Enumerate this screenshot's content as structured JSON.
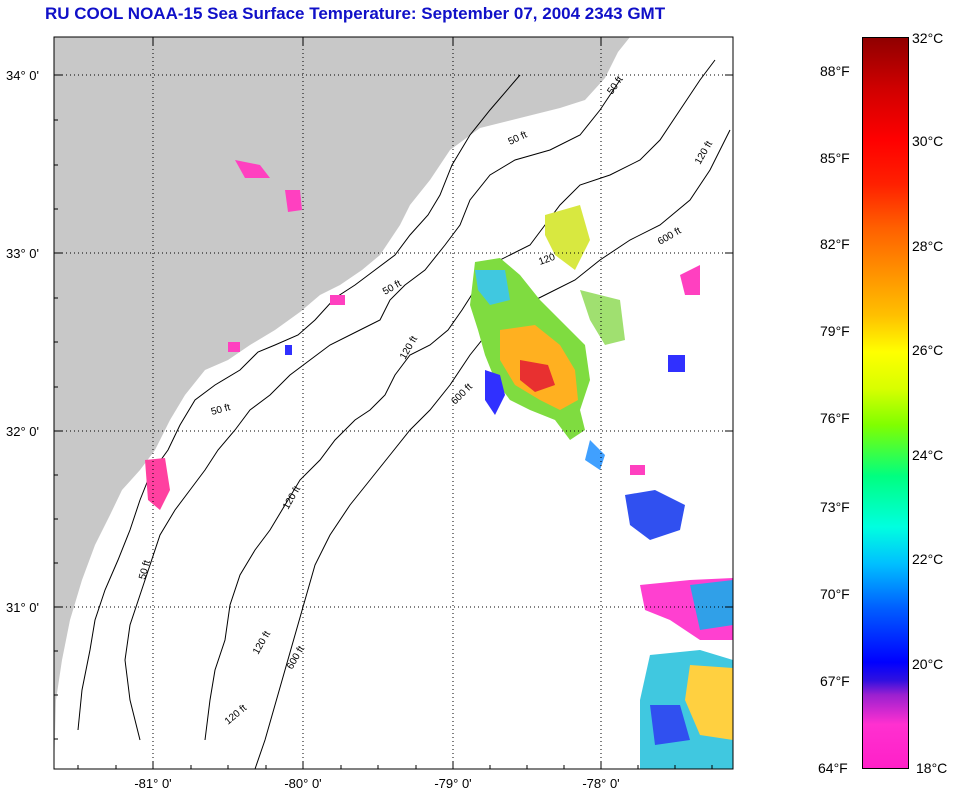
{
  "title": "RU COOL  NOAA-15  Sea Surface Temperature:  September 07, 2004 2343 GMT",
  "map": {
    "lat_labels": [
      "34° 0'",
      "33° 0'",
      "32° 0'",
      "31° 0'"
    ],
    "lon_labels": [
      "-81° 0'",
      "-80° 0'",
      "-79° 0'",
      "-78° 0'"
    ],
    "contour_labels": [
      "50 ft",
      "120 ft",
      "600 ft"
    ],
    "land_color": "#c8c8c8",
    "ocean_color": "#ffffff",
    "grid": "dotted"
  },
  "colorbar": {
    "fahrenheit": [
      "88°F",
      "85°F",
      "82°F",
      "79°F",
      "76°F",
      "73°F",
      "70°F",
      "67°F",
      "64°F"
    ],
    "celsius": [
      "32°C",
      "30°C",
      "28°C",
      "26°C",
      "24°C",
      "22°C",
      "20°C",
      "18°C"
    ]
  }
}
